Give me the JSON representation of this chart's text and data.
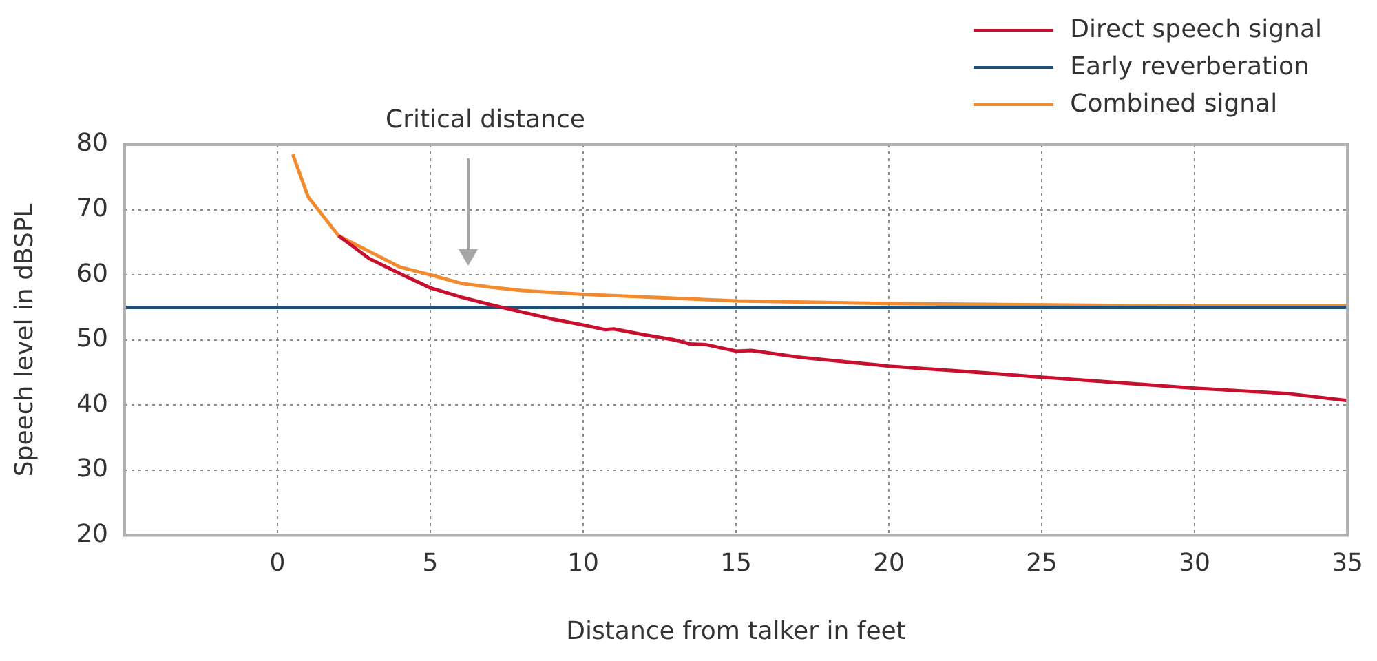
{
  "chart_data": {
    "type": "line",
    "xlabel": "Distance from talker in feet",
    "ylabel": "Speech level in dBSPL",
    "annotations": [
      "Critical distance"
    ],
    "series": [
      {
        "name": "Direct speech signal",
        "color": "#c8102e",
        "x": [
          2,
          3,
          4,
          5,
          6,
          7,
          8,
          9,
          10,
          10.7,
          11,
          12,
          13,
          13.5,
          14,
          15,
          15.5,
          17,
          20,
          23,
          25,
          28,
          30,
          33,
          35
        ],
        "values": [
          66,
          62.5,
          60.2,
          58,
          56.6,
          55.4,
          54.3,
          53.2,
          52.3,
          51.6,
          51.7,
          50.8,
          50,
          49.4,
          49.3,
          48.3,
          48.4,
          47.4,
          46,
          45,
          44.3,
          43.3,
          42.6,
          41.8,
          40.7
        ]
      },
      {
        "name": "Early reverberation",
        "color": "#1f4e79",
        "x": [
          -5,
          35
        ],
        "values": [
          55,
          55
        ]
      },
      {
        "name": "Combined signal",
        "color": "#f28a2e",
        "x": [
          0.5,
          1,
          2,
          3,
          4,
          5,
          6,
          7,
          8,
          10,
          12,
          15,
          20,
          25,
          30,
          35
        ],
        "values": [
          78.5,
          72,
          66,
          63.6,
          61.2,
          60,
          58.7,
          58.1,
          57.6,
          57,
          56.6,
          56,
          55.6,
          55.4,
          55.2,
          55.2
        ]
      }
    ],
    "xlim": [
      -5,
      35
    ],
    "xticks": [
      0,
      5,
      10,
      15,
      20,
      25,
      30,
      35
    ],
    "ylim": [
      20,
      80
    ],
    "yticks": [
      20,
      30,
      40,
      50,
      60,
      70,
      80
    ],
    "grid": true,
    "legend": "top right",
    "marker": "none",
    "line_style": "solid"
  }
}
